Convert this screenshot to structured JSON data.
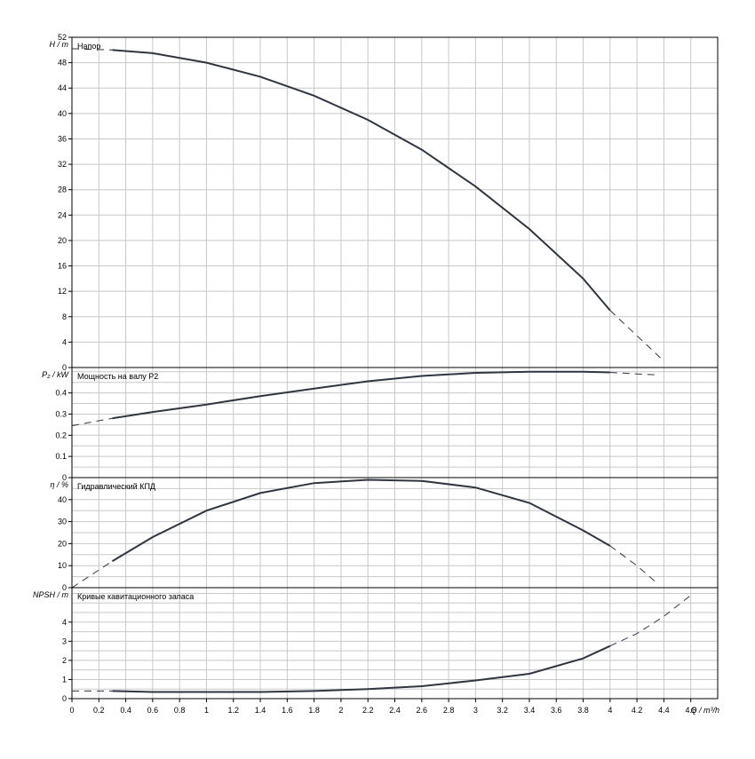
{
  "chart_data": {
    "type": "line",
    "x_unit_label": "Q / m³/h",
    "x_range": [
      0,
      4.8
    ],
    "x_ticks": [
      "0",
      "0.2",
      "0.4",
      "0.6",
      "0.8",
      "1",
      "1.2",
      "1.4",
      "1.6",
      "1.8",
      "2",
      "2.2",
      "2.4",
      "2.6",
      "2.8",
      "3",
      "3.2",
      "3.4",
      "3.6",
      "3.8",
      "4",
      "4.2",
      "4.4",
      "4.6"
    ],
    "panels": [
      {
        "id": "head",
        "title": "Напор",
        "ylabel": "H / m",
        "ylim": [
          0,
          52
        ],
        "yticks": [
          "0",
          "4",
          "8",
          "12",
          "16",
          "20",
          "24",
          "28",
          "32",
          "36",
          "40",
          "44",
          "48",
          "52"
        ],
        "curve": {
          "x": [
            0,
            0.3,
            0.6,
            1.0,
            1.4,
            1.8,
            2.2,
            2.6,
            3.0,
            3.4,
            3.8,
            4.0,
            4.2,
            4.4
          ],
          "y": [
            50.2,
            50.0,
            49.5,
            48.0,
            45.8,
            42.8,
            39.0,
            34.3,
            28.5,
            21.8,
            14.0,
            9.0,
            5.0,
            1.0
          ],
          "solid_range": [
            0.3,
            4.0
          ]
        }
      },
      {
        "id": "power",
        "title": "Мощность на валу P2",
        "ylabel": "P₂ / kW",
        "ylim": [
          0,
          0.52
        ],
        "yticks": [
          "0",
          "0.1",
          "0.2",
          "0.3",
          "0.4"
        ],
        "curve": {
          "x": [
            0,
            0.3,
            0.6,
            1.0,
            1.4,
            1.8,
            2.2,
            2.6,
            3.0,
            3.4,
            3.8,
            4.0,
            4.2,
            4.35
          ],
          "y": [
            0.245,
            0.28,
            0.31,
            0.345,
            0.385,
            0.42,
            0.455,
            0.48,
            0.495,
            0.5,
            0.5,
            0.497,
            0.49,
            0.485
          ],
          "solid_range": [
            0.3,
            4.0
          ]
        }
      },
      {
        "id": "efficiency",
        "title": "Гидравлический КПД",
        "ylabel": "η / %",
        "ylim": [
          0,
          50
        ],
        "yticks": [
          "0",
          "10",
          "20",
          "30",
          "40"
        ],
        "curve": {
          "x": [
            0,
            0.3,
            0.6,
            1.0,
            1.4,
            1.8,
            2.2,
            2.6,
            3.0,
            3.4,
            3.8,
            4.0,
            4.2,
            4.35
          ],
          "y": [
            0,
            12,
            23,
            35,
            43,
            47.5,
            49,
            48.5,
            45.5,
            38.5,
            26,
            19,
            10,
            2
          ],
          "solid_range": [
            0.3,
            4.0
          ]
        }
      },
      {
        "id": "npsh",
        "title": "Кривые кавитационного запаса",
        "ylabel": "NPSH / m",
        "ylim": [
          0,
          5.8
        ],
        "yticks": [
          "0",
          "1",
          "2",
          "3",
          "4"
        ],
        "curve": {
          "x": [
            0,
            0.3,
            0.6,
            1.0,
            1.4,
            1.8,
            2.2,
            2.6,
            3.0,
            3.4,
            3.8,
            4.0,
            4.2,
            4.4,
            4.6
          ],
          "y": [
            0.4,
            0.4,
            0.35,
            0.35,
            0.35,
            0.4,
            0.5,
            0.65,
            0.95,
            1.3,
            2.1,
            2.75,
            3.4,
            4.3,
            5.4
          ],
          "solid_range": [
            0.3,
            4.0
          ]
        }
      }
    ]
  }
}
